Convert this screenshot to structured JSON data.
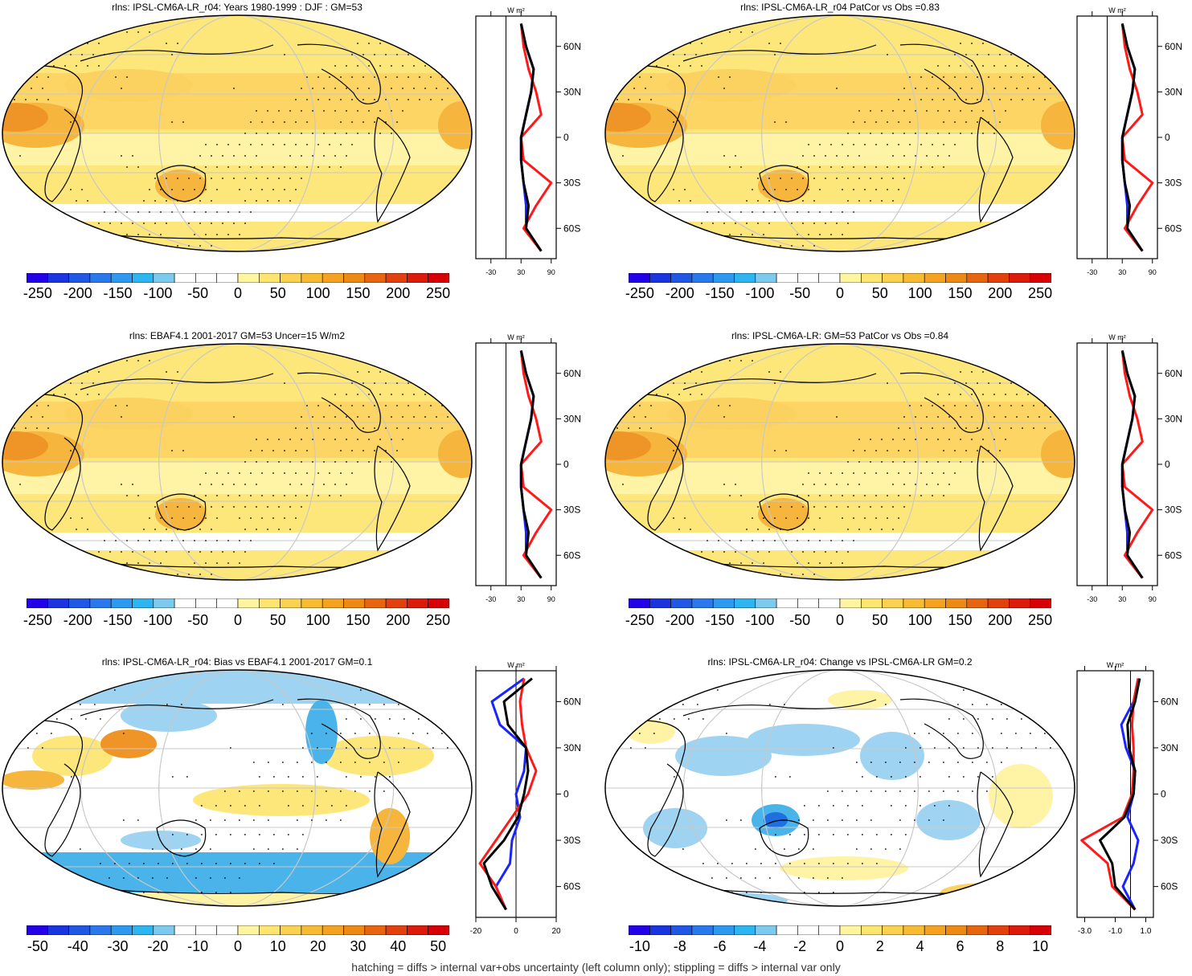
{
  "footnote": "hatching = diffs > internal var+obs uncertainty (left column only); stippling = diffs > internal var only",
  "colors": {
    "yellow_light": "#fff3a6",
    "yellow": "#fde67a",
    "orange_light": "#fbd160",
    "orange": "#f6b53d",
    "orange_dark": "#ef9527",
    "blue_light": "#9ed3f1",
    "blue": "#4ab4ea",
    "blue_dark": "#1f6fe0",
    "line_red": "#ff1a1a",
    "line_blue": "#1a24ff",
    "line_black": "#000000"
  },
  "panels": [
    {
      "id": "p1",
      "title": "rlns: IPSL-CM6A-LR_r04: Years 1980-1999 : DJF : GM=53",
      "kind": "abs",
      "cbar": [
        "-250",
        "-200",
        "-150",
        "-100",
        "-50",
        "0",
        "50",
        "100",
        "150",
        "200",
        "250"
      ],
      "prof_x": [
        "-30",
        "30",
        "90"
      ],
      "prof_unit": "W m²",
      "lats": [
        "60N",
        "30N",
        "0",
        "30S",
        "60S"
      ]
    },
    {
      "id": "p2",
      "title": "rlns: IPSL-CM6A-LR_r04 PatCor vs Obs =0.83",
      "kind": "abs",
      "cbar": [
        "-250",
        "-200",
        "-150",
        "-100",
        "-50",
        "0",
        "50",
        "100",
        "150",
        "200",
        "250"
      ],
      "prof_x": [
        "-30",
        "30",
        "90"
      ],
      "prof_unit": "W m²",
      "lats": [
        "60N",
        "30N",
        "0",
        "30S",
        "60S"
      ]
    },
    {
      "id": "p3",
      "title": "rlns: EBAF4.1 2001-2017 GM=53 Uncer=15 W/m2",
      "kind": "abs",
      "cbar": [
        "-250",
        "-200",
        "-150",
        "-100",
        "-50",
        "0",
        "50",
        "100",
        "150",
        "200",
        "250"
      ],
      "prof_x": [
        "-30",
        "30",
        "90"
      ],
      "prof_unit": "W m²",
      "lats": [
        "60N",
        "30N",
        "0",
        "30S",
        "60S"
      ]
    },
    {
      "id": "p4",
      "title": "rlns: IPSL-CM6A-LR: GM=53 PatCor vs Obs =0.84",
      "kind": "abs",
      "cbar": [
        "-250",
        "-200",
        "-150",
        "-100",
        "-50",
        "0",
        "50",
        "100",
        "150",
        "200",
        "250"
      ],
      "prof_x": [
        "-30",
        "30",
        "90"
      ],
      "prof_unit": "W m²",
      "lats": [
        "60N",
        "30N",
        "0",
        "30S",
        "60S"
      ]
    },
    {
      "id": "p5",
      "title": "rlns: IPSL-CM6A-LR_r04: Bias vs EBAF4.1 2001-2017 GM=0.1",
      "kind": "bias",
      "cbar": [
        "-50",
        "-40",
        "-30",
        "-20",
        "-10",
        "0",
        "10",
        "20",
        "30",
        "40",
        "50"
      ],
      "prof_x": [
        "-20",
        "0",
        "20"
      ],
      "prof_unit": "W m²",
      "lats": [
        "60N",
        "30N",
        "0",
        "30S",
        "60S"
      ]
    },
    {
      "id": "p6",
      "title": "rlns: IPSL-CM6A-LR_r04: Change vs IPSL-CM6A-LR GM=0.2",
      "kind": "change",
      "cbar": [
        "-10",
        "-8",
        "-6",
        "-4",
        "-2",
        "0",
        "2",
        "4",
        "6",
        "8",
        "10"
      ],
      "prof_x": [
        "-3.0",
        "-1.0",
        "1.0"
      ],
      "prof_unit": "W m²",
      "lats": [
        "60N",
        "30N",
        "0",
        "30S",
        "60S"
      ]
    }
  ],
  "chart_data": {
    "type": "heatmap",
    "variable": "rlns",
    "colorbar_abs": [
      -250,
      -200,
      -150,
      -100,
      -50,
      0,
      50,
      100,
      150,
      200,
      250
    ],
    "colorbar_bias": [
      -50,
      -40,
      -30,
      -20,
      -10,
      0,
      10,
      20,
      30,
      40,
      50
    ],
    "colorbar_change": [
      -10,
      -8,
      -6,
      -4,
      -2,
      0,
      2,
      4,
      6,
      8,
      10
    ],
    "zonal_mean_latitudes": [
      -75,
      -60,
      -45,
      -30,
      -15,
      0,
      15,
      30,
      45,
      60,
      75
    ],
    "zonal_mean_abs": {
      "blue": [
        70,
        40,
        40,
        35,
        30,
        30,
        40,
        50,
        55,
        40,
        30
      ],
      "red": [
        70,
        35,
        60,
        90,
        35,
        30,
        70,
        60,
        45,
        35,
        30
      ],
      "black": [
        70,
        40,
        45,
        35,
        30,
        30,
        40,
        50,
        55,
        40,
        30
      ]
    },
    "zonal_mean_bias": {
      "blue": [
        -5,
        -10,
        -3,
        -2,
        2,
        0,
        4,
        5,
        -8,
        -12,
        4
      ],
      "red": [
        -5,
        -10,
        -18,
        -10,
        -2,
        6,
        10,
        5,
        3,
        2,
        4
      ],
      "black": [
        -5,
        -12,
        -16,
        -6,
        1,
        4,
        6,
        5,
        -4,
        -6,
        8
      ]
    },
    "zonal_mean_change": {
      "blue": [
        0.3,
        -0.5,
        0.2,
        0.5,
        -0.2,
        0.2,
        0.3,
        -0.3,
        -0.6,
        0.2,
        0.5
      ],
      "red": [
        0.3,
        -1.2,
        -1.5,
        -3.2,
        -0.5,
        0.1,
        0.2,
        0.2,
        0.1,
        0.2,
        0.5
      ],
      "black": [
        0.3,
        -1.0,
        -1.2,
        -2.0,
        -0.4,
        0.2,
        0.3,
        -0.1,
        -0.2,
        0.3,
        0.6
      ]
    }
  }
}
